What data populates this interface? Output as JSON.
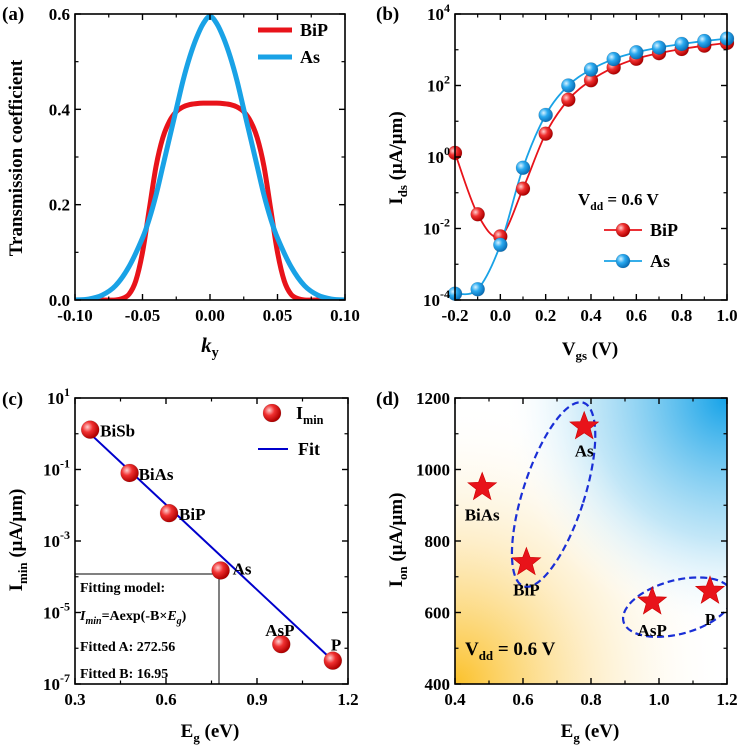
{
  "chart_data": [
    {
      "panel": "(a)",
      "type": "line",
      "xlabel": "k",
      "xlabel_sub": "y",
      "ylabel": "Transmission coefficient",
      "xlim": [
        -0.1,
        0.1
      ],
      "ylim": [
        0,
        0.6
      ],
      "xticks": [
        "-0.10",
        "-0.05",
        "0.00",
        "0.05",
        "0.10"
      ],
      "yticks": [
        "0.0",
        "0.2",
        "0.4",
        "0.6"
      ],
      "legend": "top-right",
      "series": [
        {
          "name": "BiP",
          "color": "#e8131a",
          "x": [
            -0.1,
            -0.08,
            -0.07,
            -0.065,
            -0.06,
            -0.055,
            -0.05,
            -0.045,
            -0.04,
            -0.035,
            -0.03,
            -0.025,
            -0.02,
            -0.015,
            -0.01,
            -0.005,
            0,
            0.005,
            0.01,
            0.015,
            0.02,
            0.025,
            0.03,
            0.035,
            0.04,
            0.045,
            0.05,
            0.055,
            0.06,
            0.065,
            0.07,
            0.08,
            0.1
          ],
          "y": [
            0,
            0,
            0,
            0.003,
            0.012,
            0.04,
            0.1,
            0.19,
            0.28,
            0.34,
            0.375,
            0.395,
            0.405,
            0.41,
            0.412,
            0.413,
            0.413,
            0.413,
            0.412,
            0.41,
            0.405,
            0.395,
            0.375,
            0.34,
            0.28,
            0.19,
            0.1,
            0.04,
            0.012,
            0.003,
            0,
            0,
            0
          ]
        },
        {
          "name": "As",
          "color": "#19a2e6",
          "x": [
            -0.1,
            -0.09,
            -0.08,
            -0.07,
            -0.06,
            -0.05,
            -0.045,
            -0.04,
            -0.035,
            -0.03,
            -0.025,
            -0.02,
            -0.015,
            -0.01,
            -0.005,
            0,
            0.005,
            0.01,
            0.015,
            0.02,
            0.025,
            0.03,
            0.035,
            0.04,
            0.045,
            0.05,
            0.06,
            0.07,
            0.08,
            0.09,
            0.1
          ],
          "y": [
            0,
            0.002,
            0.01,
            0.03,
            0.07,
            0.13,
            0.17,
            0.22,
            0.28,
            0.34,
            0.4,
            0.46,
            0.51,
            0.55,
            0.58,
            0.595,
            0.58,
            0.55,
            0.51,
            0.46,
            0.4,
            0.34,
            0.28,
            0.22,
            0.17,
            0.13,
            0.07,
            0.03,
            0.01,
            0.002,
            0
          ]
        }
      ]
    },
    {
      "panel": "(b)",
      "type": "line",
      "xlabel": "V",
      "xlabel_sub": "gs",
      "xlabel_unit": " (V)",
      "ylabel": "I",
      "ylabel_sub": "ds",
      "ylabel_unit": " (μA/μm)",
      "yscale": "log",
      "xlim": [
        -0.2,
        1.0
      ],
      "ylim": [
        0.0001,
        10000
      ],
      "xticks": [
        "-0.2",
        "0.0",
        "0.2",
        "0.4",
        "0.6",
        "0.8",
        "1.0"
      ],
      "yticks": [
        {
          "base": "10",
          "exp": "-4"
        },
        {
          "base": "10",
          "exp": "-2"
        },
        {
          "base": "10",
          "exp": "0"
        },
        {
          "base": "10",
          "exp": "2"
        },
        {
          "base": "10",
          "exp": "4"
        }
      ],
      "annotation": {
        "main": "V",
        "sub": "dd",
        "rest": " = 0.6 V"
      },
      "legend": "lower-right",
      "series": [
        {
          "name": "BiP",
          "color": "#e8131a",
          "x": [
            -0.2,
            -0.1,
            0,
            0.1,
            0.2,
            0.3,
            0.4,
            0.5,
            0.6,
            0.7,
            0.8,
            0.9,
            1.0
          ],
          "y": [
            1.3,
            0.025,
            0.006,
            0.13,
            4.5,
            40,
            140,
            320,
            560,
            800,
            1050,
            1300,
            1550
          ]
        },
        {
          "name": "As",
          "color": "#19a2e6",
          "x": [
            -0.2,
            -0.1,
            0,
            0.1,
            0.2,
            0.3,
            0.4,
            0.5,
            0.6,
            0.7,
            0.8,
            0.9,
            1.0
          ],
          "y": [
            0.00015,
            0.0002,
            0.0035,
            0.5,
            15,
            100,
            280,
            550,
            850,
            1150,
            1450,
            1750,
            2050
          ]
        }
      ]
    },
    {
      "panel": "(c)",
      "type": "scatter",
      "xlabel": "E",
      "xlabel_sub": "g",
      "xlabel_unit": " (eV)",
      "ylabel": "I",
      "ylabel_sub": "min",
      "ylabel_unit": " (μA/μm)",
      "yscale": "log",
      "xlim": [
        0.3,
        1.2
      ],
      "ylim": [
        1e-07,
        10
      ],
      "xticks": [
        "0.3",
        "0.6",
        "0.9",
        "1.2"
      ],
      "yticks": [
        {
          "base": "10",
          "exp": "-7"
        },
        {
          "base": "10",
          "exp": "-5"
        },
        {
          "base": "10",
          "exp": "-3"
        },
        {
          "base": "10",
          "exp": "-1"
        },
        {
          "base": "10",
          "exp": "1"
        }
      ],
      "legend_points": {
        "main": "I",
        "sub": "min"
      },
      "legend_fit": "Fit",
      "points": [
        {
          "label": "BiSb",
          "x": 0.35,
          "y": 1.3
        },
        {
          "label": "BiAs",
          "x": 0.48,
          "y": 0.08
        },
        {
          "label": "BiP",
          "x": 0.61,
          "y": 0.006
        },
        {
          "label": "As",
          "x": 0.78,
          "y": 0.00015
        },
        {
          "label": "AsP",
          "x": 0.98,
          "y": 1.3e-06
        },
        {
          "label": "P",
          "x": 1.15,
          "y": 4.5e-07
        }
      ],
      "fit": {
        "x": [
          0.34,
          1.15
        ],
        "y": [
          1.2,
          4.5e-07
        ],
        "color": "#0000cc"
      },
      "fit_box": {
        "line1": "Fitting model:",
        "line2_a": "I",
        "line2_sub": "min",
        "line2_b": "=Aexp(-B×",
        "line2_c": "E",
        "line2_sub2": "g",
        "line2_d": ")",
        "line3": "Fitted A: 272.56",
        "line4": "Fitted B: 16.95"
      }
    },
    {
      "panel": "(d)",
      "type": "scatter",
      "xlabel": "E",
      "xlabel_sub": "g",
      "xlabel_unit": " (eV)",
      "ylabel": "I",
      "ylabel_sub": "on",
      "ylabel_unit": " (μA/μm)",
      "xlim": [
        0.4,
        1.2
      ],
      "ylim": [
        400,
        1200
      ],
      "xticks": [
        "0.4",
        "0.6",
        "0.8",
        "1.0",
        "1.2"
      ],
      "yticks": [
        "400",
        "600",
        "800",
        "1000",
        "1200"
      ],
      "annotation": {
        "main": "V",
        "sub": "dd",
        "rest": " = 0.6 V"
      },
      "points": [
        {
          "label": "As",
          "x": 0.78,
          "y": 1120
        },
        {
          "label": "BiAs",
          "x": 0.48,
          "y": 950
        },
        {
          "label": "BiP",
          "x": 0.61,
          "y": 740
        },
        {
          "label": "AsP",
          "x": 0.98,
          "y": 630
        },
        {
          "label": "P",
          "x": 1.15,
          "y": 660
        }
      ],
      "ellipses": [
        {
          "cx": 0.69,
          "cy": 930,
          "rx": 0.09,
          "ry": 270,
          "rotate": 18
        },
        {
          "cx": 1.055,
          "cy": 615,
          "rx": 0.165,
          "ry": 75,
          "rotate": -15
        }
      ],
      "colors": {
        "star": "#e8131a",
        "ellipse": "#1a2fd6",
        "bg_warm": "#fbc32e",
        "bg_cool": "#16a4e8"
      }
    }
  ]
}
